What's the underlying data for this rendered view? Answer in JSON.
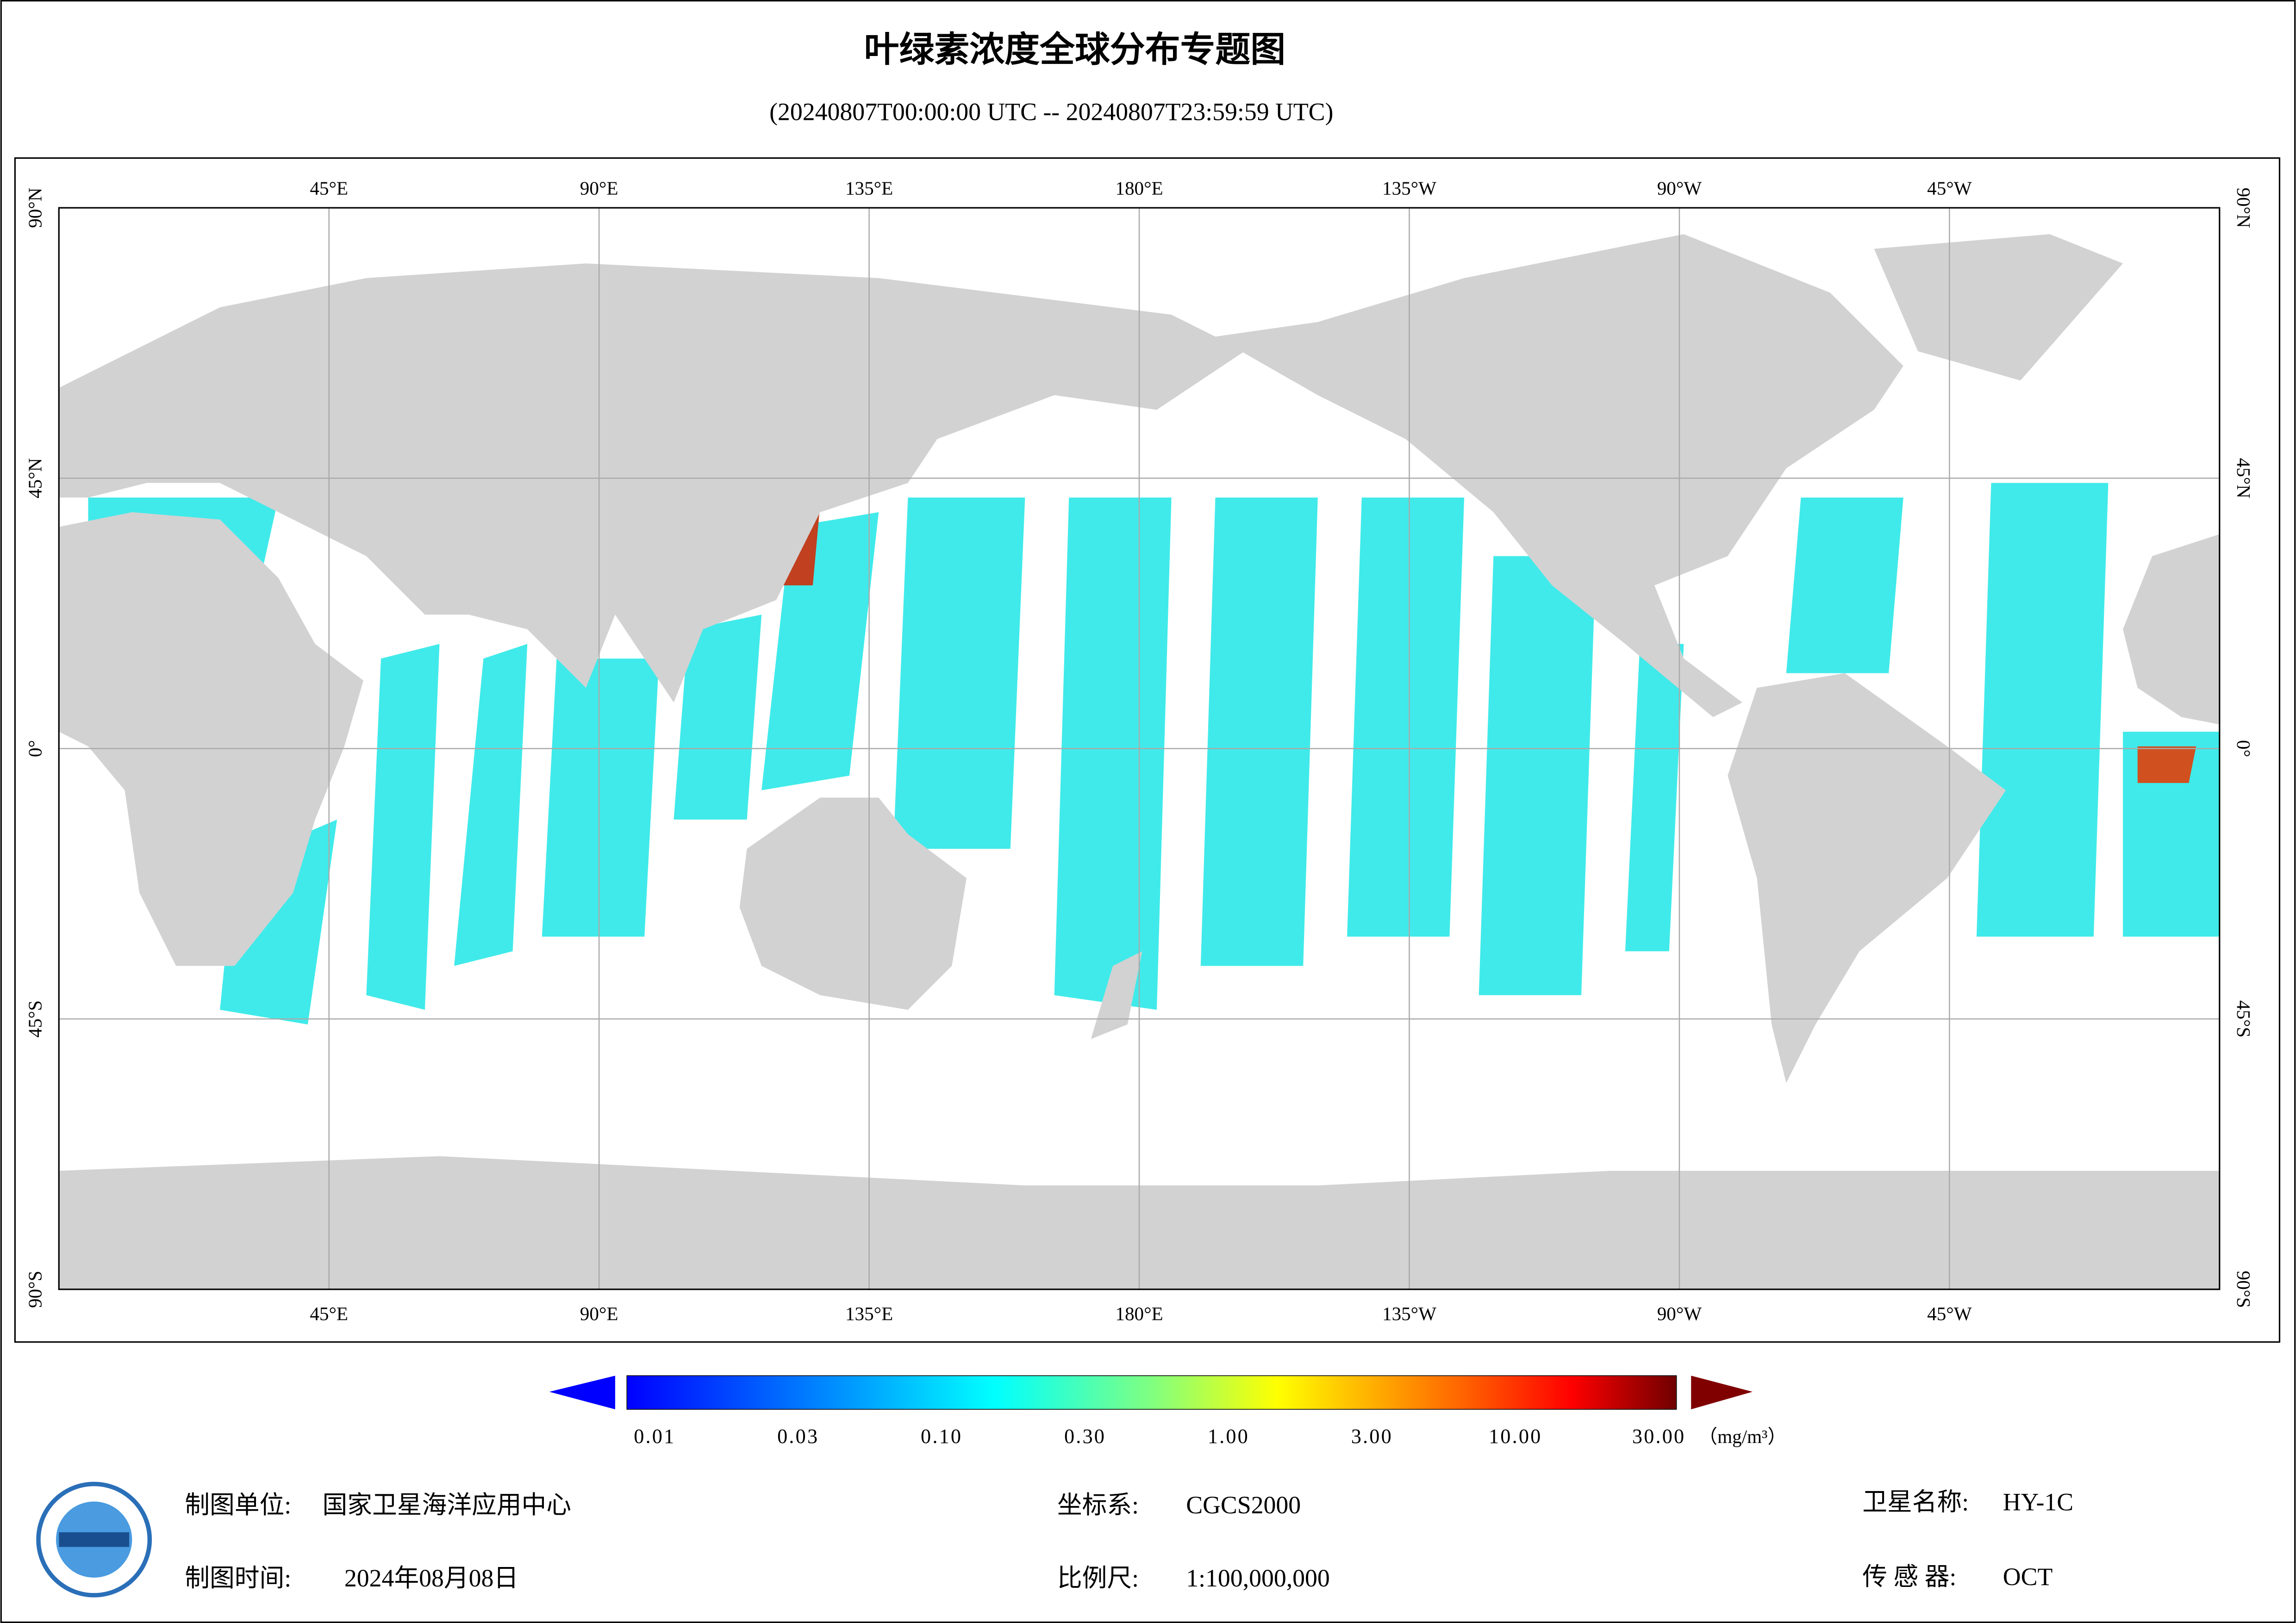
{
  "header": {
    "title": "叶绿素浓度全球分布专题图",
    "subtitle": "(20240807T00:00:00 UTC -- 20240807T23:59:59 UTC)"
  },
  "map": {
    "lon_labels": [
      "45°E",
      "90°E",
      "135°E",
      "180°E",
      "135°W",
      "90°W",
      "45°W"
    ],
    "lat_labels": [
      "90°N",
      "45°N",
      "0°",
      "45°S",
      "90°S"
    ]
  },
  "colorbar": {
    "labels": [
      "0.01",
      "0.03",
      "0.10",
      "0.30",
      "1.00",
      "3.00",
      "10.00",
      "30.00"
    ],
    "unit": "（mg/m³）"
  },
  "footer": {
    "items": [
      {
        "label": "制图单位:",
        "value": "国家卫星海洋应用中心"
      },
      {
        "label": "制图时间:",
        "value": "2024年08月08日"
      },
      {
        "label": "坐标系:",
        "value": "CGCS2000"
      },
      {
        "label": "比例尺:",
        "value": "1:100,000,000"
      },
      {
        "label": "卫星名称:",
        "value": "HY-1C"
      },
      {
        "label": "传 感 器:",
        "value": "OCT"
      }
    ]
  }
}
